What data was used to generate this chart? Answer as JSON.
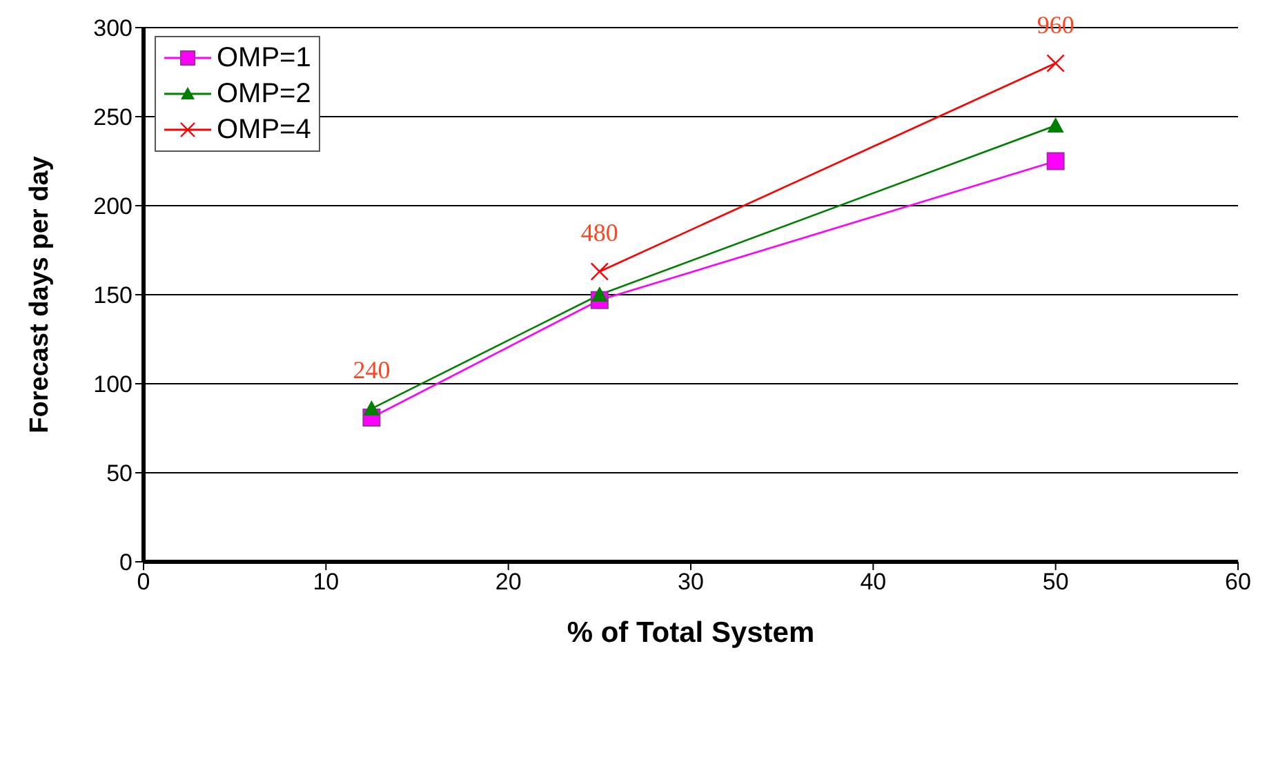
{
  "chart_data": {
    "type": "line",
    "xlabel": "% of Total System",
    "ylabel": "Forecast days per day",
    "xlim": [
      0,
      60
    ],
    "xticks": [
      0,
      10,
      20,
      30,
      40,
      50,
      60
    ],
    "ylim": [
      0,
      300
    ],
    "yticks": [
      0,
      50,
      100,
      150,
      200,
      250,
      300
    ],
    "grid": "y",
    "legend": "top left",
    "series": [
      {
        "name": "OMP=1",
        "color": "#ff00ff",
        "marker": "square",
        "x": [
          12.5,
          25,
          50
        ],
        "values": [
          81,
          147,
          225
        ]
      },
      {
        "name": "OMP=2",
        "color": "#008000",
        "marker": "triangle",
        "x": [
          12.5,
          25,
          50
        ],
        "values": [
          86,
          150,
          245
        ]
      },
      {
        "name": "OMP=4",
        "color": "#ff0000",
        "marker": "cross",
        "x": [
          25,
          50
        ],
        "values": [
          163,
          280
        ]
      }
    ],
    "annotations": [
      {
        "text": "240",
        "x": 12.5,
        "y": 86
      },
      {
        "text": "480",
        "x": 25,
        "y": 163
      },
      {
        "text": "960",
        "x": 50,
        "y": 280
      }
    ]
  }
}
